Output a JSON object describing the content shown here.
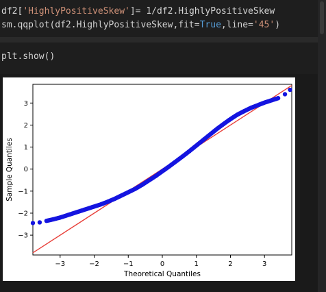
{
  "code": {
    "line1": {
      "p1": "df2[",
      "p2": "'HighlyPositiveSkew'",
      "p3": "]= 1/df2.HighlyPositiveSkew"
    },
    "line2": {
      "p1": "sm.qqplot(df2.HighlyPositiveSkew,fit=",
      "p2": "True",
      "p3": ",line=",
      "p4": "'45'",
      "p5": ")"
    },
    "line3": {
      "text": "plt.show()"
    }
  },
  "chart_data": {
    "type": "scatter",
    "xlabel": "Theoretical Quantiles",
    "ylabel": "Sample Quantiles",
    "xlim": [
      -3.8,
      3.8
    ],
    "ylim": [
      -3.9,
      3.85
    ],
    "xticks": [
      "−3",
      "−2",
      "−1",
      "0",
      "1",
      "2",
      "3"
    ],
    "yticks": [
      "−3",
      "−2",
      "−1",
      "0",
      "1",
      "2",
      "3"
    ],
    "reference_line": {
      "type": "45-degree",
      "color": "#e8403a"
    },
    "marker_color": "#1414e0",
    "series": [
      {
        "x": [
          -3.8,
          -3.6,
          -3.4,
          -3.2,
          -3.0,
          -2.8,
          -2.6,
          -2.4,
          -2.2,
          -2.0,
          -1.8,
          -1.6,
          -1.4,
          -1.2,
          -1.0,
          -0.8,
          -0.6,
          -0.4,
          -0.2,
          0.0,
          0.2,
          0.4,
          0.6,
          0.8,
          1.0,
          1.2,
          1.4,
          1.6,
          1.8,
          2.0,
          2.2,
          2.4,
          2.6,
          2.8,
          3.0,
          3.2,
          3.4,
          3.6,
          3.75
        ],
        "y": [
          -2.45,
          -2.42,
          -2.35,
          -2.28,
          -2.2,
          -2.1,
          -2.0,
          -1.9,
          -1.8,
          -1.7,
          -1.6,
          -1.48,
          -1.35,
          -1.2,
          -1.05,
          -0.9,
          -0.72,
          -0.52,
          -0.32,
          -0.1,
          0.12,
          0.35,
          0.58,
          0.82,
          1.07,
          1.32,
          1.57,
          1.82,
          2.05,
          2.27,
          2.47,
          2.63,
          2.78,
          2.9,
          3.02,
          3.12,
          3.22,
          3.4,
          3.6
        ]
      }
    ]
  }
}
